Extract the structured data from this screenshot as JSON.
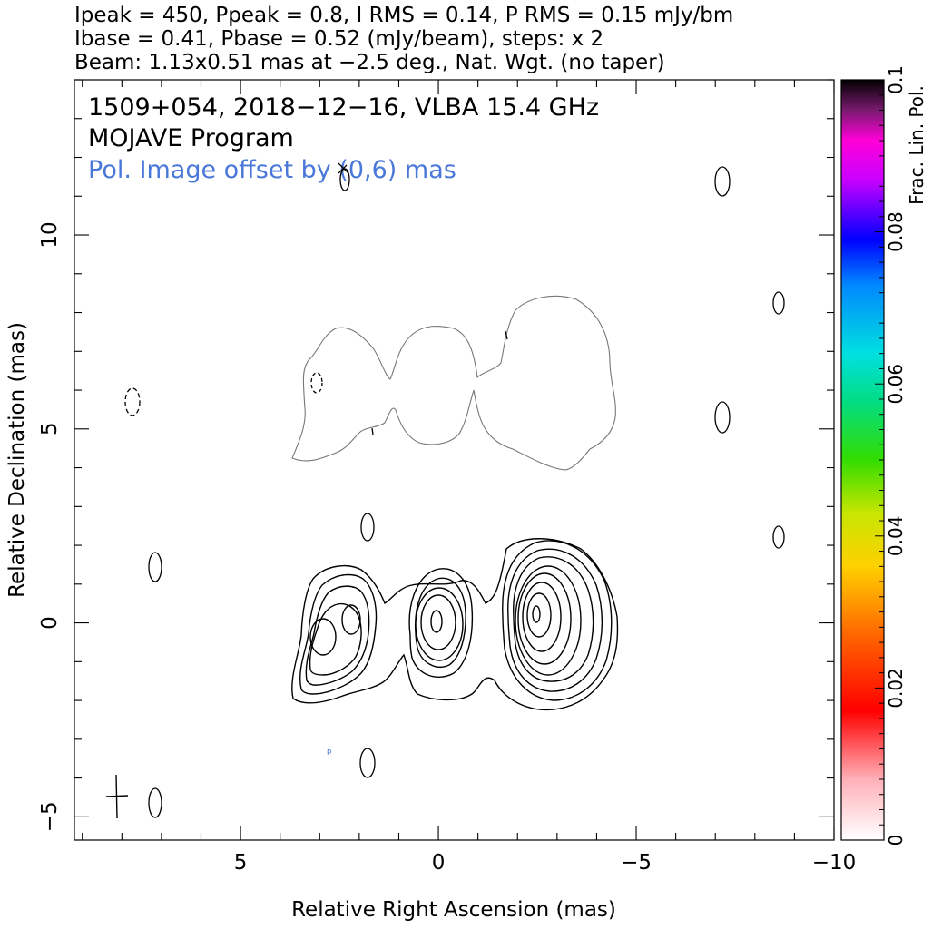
{
  "header": {
    "line1": "Ipeak = 450, Ppeak = 0.8, I RMS = 0.14, P RMS = 0.15 mJy/bm",
    "line2": "Ibase = 0.41, Pbase = 0.52 (mJy/beam), steps: x 2",
    "line3": "Beam: 1.13x0.51 mas at −2.5 deg., Nat. Wgt. (no taper)"
  },
  "annotations": {
    "source": "1509+054, 2018−12−16, VLBA 15.4 GHz",
    "program": "MOJAVE Program",
    "pol_offset": "Pol. Image offset by (0,6) mas"
  },
  "colors": {
    "pol_text": "#4a78d8",
    "contour": "#000000",
    "pol_contour": "#777777",
    "axis": "#000000"
  },
  "chart_data": {
    "type": "contour",
    "xlabel": "Relative Right Ascension (mas)",
    "ylabel": "Relative Declination (mas)",
    "xlim": [
      9.2,
      -10.0
    ],
    "ylim": [
      -5.6,
      14.0
    ],
    "xticks": [
      5,
      0,
      -5,
      -10
    ],
    "xtick_labels": [
      "5",
      "0",
      "−5",
      "−10"
    ],
    "yticks": [
      -5,
      0,
      5,
      10
    ],
    "ytick_labels": [
      "−5",
      "0",
      "5",
      "10"
    ],
    "stokes_i_components": [
      {
        "x": 0.0,
        "y": 0.0,
        "levels": 5
      },
      {
        "x": -2.55,
        "y": 0.2,
        "levels": 8
      },
      {
        "x": 3.0,
        "y": -0.3,
        "levels": 4
      }
    ],
    "beam": {
      "major_mas": 1.13,
      "minor_mas": 0.51,
      "pa_deg": -2.5
    },
    "colorbar": {
      "label": "Frac. Lin. Pol.",
      "range": [
        0,
        0.1
      ],
      "ticks": [
        0,
        0.02,
        0.04,
        0.06,
        0.08,
        0.1
      ],
      "tick_labels": [
        "0",
        "0.02",
        "0.04",
        "0.06",
        "0.08",
        "0.1"
      ]
    }
  }
}
